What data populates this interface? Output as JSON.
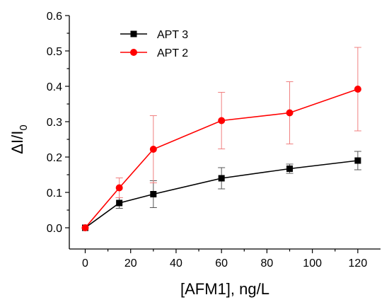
{
  "chart_data": {
    "type": "line",
    "xlabel": "[AFM1], ng/L",
    "ylabel": "ΔI/I",
    "ylabel_subscript": "0",
    "xlim": [
      -7,
      130
    ],
    "ylim": [
      -0.06,
      0.6
    ],
    "x_ticks": [
      0,
      20,
      40,
      60,
      80,
      100,
      120
    ],
    "y_ticks": [
      0.0,
      0.1,
      0.2,
      0.3,
      0.4,
      0.5,
      0.6
    ],
    "x_tick_labels": [
      "0",
      "20",
      "40",
      "60",
      "80",
      "100",
      "120"
    ],
    "y_tick_labels": [
      "0.0",
      "0.1",
      "0.2",
      "0.3",
      "0.4",
      "0.5",
      "0.6"
    ],
    "grid": false,
    "legend_position": "top-left",
    "series": [
      {
        "name": "APT 3",
        "color": "#000000",
        "marker": "square",
        "x": [
          0,
          15,
          30,
          60,
          90,
          120
        ],
        "y": [
          0.0,
          0.07,
          0.095,
          0.14,
          0.167,
          0.19
        ],
        "error": [
          0.0,
          0.015,
          0.038,
          0.03,
          0.013,
          0.026
        ]
      },
      {
        "name": "APT 2",
        "color": "#ff0000",
        "marker": "circle",
        "x": [
          0,
          15,
          30,
          60,
          90,
          120
        ],
        "y": [
          0.0,
          0.113,
          0.222,
          0.303,
          0.325,
          0.392
        ],
        "error": [
          0.0,
          0.028,
          0.095,
          0.08,
          0.088,
          0.118
        ]
      }
    ]
  }
}
